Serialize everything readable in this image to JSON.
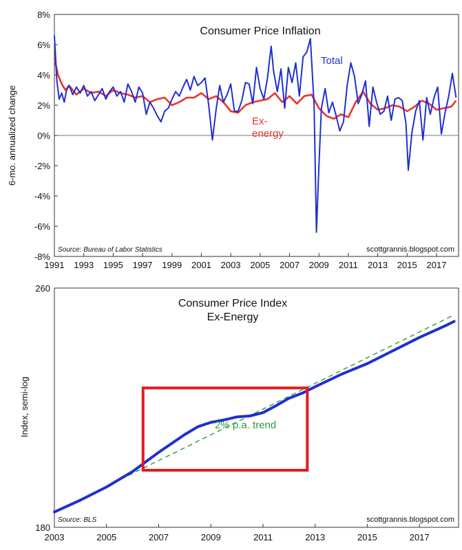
{
  "chart_data": [
    {
      "type": "line",
      "title": "Consumer Price Inflation",
      "ylabel": "6-mo. annualized change",
      "xlim": [
        1991,
        2018.5
      ],
      "ylim": [
        -8,
        8
      ],
      "x_ticks": [
        "1991",
        "1993",
        "1995",
        "1997",
        "1999",
        "2001",
        "2003",
        "2005",
        "2007",
        "2009",
        "2011",
        "2013",
        "2015",
        "2017"
      ],
      "x_tick_values": [
        1991,
        1993,
        1995,
        1997,
        1999,
        2001,
        2003,
        2005,
        2007,
        2009,
        2011,
        2013,
        2015,
        2017
      ],
      "y_ticks": [
        "8%",
        "6%",
        "4%",
        "2%",
        "0%",
        "-2%",
        "-4%",
        "-6%",
        "-8%"
      ],
      "y_tick_values": [
        8,
        6,
        4,
        2,
        0,
        -2,
        -4,
        -6,
        -8
      ],
      "source": "Source: Bureau of Labor Statistics",
      "website": "scottgrannis.blogspot.com",
      "series": [
        {
          "name": "Total",
          "color": "#1f2fd0",
          "x": [
            1991.0,
            1991.17,
            1991.33,
            1991.5,
            1991.67,
            1991.83,
            1992.0,
            1992.25,
            1992.5,
            1992.75,
            1993.0,
            1993.25,
            1993.5,
            1993.75,
            1994.0,
            1994.25,
            1994.5,
            1994.75,
            1995.0,
            1995.25,
            1995.5,
            1995.75,
            1996.0,
            1996.25,
            1996.5,
            1996.75,
            1997.0,
            1997.25,
            1997.5,
            1997.75,
            1998.0,
            1998.25,
            1998.5,
            1998.75,
            1999.0,
            1999.25,
            1999.5,
            1999.75,
            2000.0,
            2000.25,
            2000.5,
            2000.75,
            2001.0,
            2001.25,
            2001.5,
            2001.75,
            2002.0,
            2002.25,
            2002.5,
            2002.75,
            2003.0,
            2003.25,
            2003.5,
            2003.75,
            2004.0,
            2004.25,
            2004.5,
            2004.75,
            2005.0,
            2005.25,
            2005.5,
            2005.75,
            2005.92,
            2006.17,
            2006.42,
            2006.67,
            2006.92,
            2007.17,
            2007.42,
            2007.67,
            2007.92,
            2008.17,
            2008.42,
            2008.67,
            2008.83,
            2009.0,
            2009.17,
            2009.42,
            2009.67,
            2009.92,
            2010.17,
            2010.42,
            2010.67,
            2010.92,
            2011.17,
            2011.42,
            2011.67,
            2011.92,
            2012.17,
            2012.42,
            2012.67,
            2012.92,
            2013.17,
            2013.42,
            2013.67,
            2013.92,
            2014.17,
            2014.42,
            2014.67,
            2014.92,
            2015.08,
            2015.33,
            2015.58,
            2015.83,
            2016.08,
            2016.33,
            2016.58,
            2016.83,
            2017.08,
            2017.33,
            2017.58,
            2017.83,
            2018.08,
            2018.33
          ],
          "y": [
            6.6,
            3.6,
            2.4,
            2.8,
            2.2,
            3.0,
            3.3,
            2.7,
            3.2,
            2.8,
            3.3,
            2.6,
            2.9,
            2.3,
            2.7,
            3.1,
            2.4,
            2.9,
            3.2,
            2.6,
            2.9,
            2.2,
            3.4,
            2.9,
            2.2,
            3.2,
            2.8,
            1.4,
            2.2,
            1.8,
            1.3,
            0.9,
            1.6,
            1.8,
            2.4,
            2.9,
            2.6,
            3.2,
            3.7,
            3.0,
            3.9,
            3.3,
            3.5,
            3.8,
            2.0,
            -0.3,
            1.7,
            3.3,
            2.2,
            2.7,
            3.4,
            1.6,
            1.6,
            2.3,
            3.5,
            3.4,
            2.1,
            4.5,
            3.1,
            2.4,
            3.8,
            5.9,
            4.2,
            2.9,
            4.4,
            1.8,
            4.5,
            3.5,
            4.8,
            2.6,
            5.2,
            5.5,
            6.4,
            2.0,
            -6.4,
            -2.0,
            1.8,
            3.1,
            1.5,
            2.2,
            1.3,
            0.3,
            0.9,
            3.3,
            4.8,
            3.9,
            2.1,
            2.7,
            3.6,
            0.6,
            3.2,
            2.2,
            1.4,
            1.6,
            2.6,
            1.0,
            2.4,
            2.5,
            2.3,
            0.8,
            -2.3,
            0.2,
            1.6,
            2.3,
            -0.3,
            2.5,
            1.4,
            2.5,
            3.2,
            0.1,
            1.5,
            2.6,
            4.1,
            2.5
          ]
        },
        {
          "name": "Ex-energy",
          "color": "#e8342a",
          "x": [
            1991.0,
            1991.25,
            1991.5,
            1991.75,
            1992.0,
            1992.5,
            1993.0,
            1993.5,
            1994.0,
            1994.5,
            1995.0,
            1995.5,
            1996.0,
            1996.5,
            1997.0,
            1997.5,
            1998.0,
            1998.5,
            1999.0,
            1999.5,
            2000.0,
            2000.5,
            2001.0,
            2001.5,
            2002.0,
            2002.5,
            2003.0,
            2003.5,
            2004.0,
            2004.5,
            2005.0,
            2005.5,
            2006.0,
            2006.5,
            2007.0,
            2007.5,
            2008.0,
            2008.5,
            2009.0,
            2009.5,
            2010.0,
            2010.5,
            2011.0,
            2011.5,
            2012.0,
            2012.5,
            2013.0,
            2013.5,
            2014.0,
            2014.5,
            2015.0,
            2015.5,
            2016.0,
            2016.5,
            2017.0,
            2017.5,
            2018.0,
            2018.33
          ],
          "y": [
            5.1,
            4.0,
            3.4,
            3.0,
            3.3,
            2.7,
            3.1,
            2.8,
            2.9,
            2.6,
            3.0,
            2.8,
            2.7,
            2.5,
            2.6,
            2.2,
            2.4,
            2.5,
            2.0,
            2.2,
            2.5,
            2.5,
            2.8,
            2.4,
            2.6,
            2.2,
            1.6,
            1.5,
            2.0,
            2.2,
            2.3,
            2.4,
            2.8,
            2.2,
            2.6,
            2.1,
            2.6,
            2.7,
            1.8,
            1.3,
            1.1,
            1.4,
            1.2,
            2.2,
            2.9,
            2.1,
            1.7,
            1.8,
            2.0,
            1.9,
            1.6,
            1.9,
            2.3,
            2.1,
            1.7,
            1.8,
            1.9,
            2.3
          ]
        }
      ],
      "annotations": [
        "Total",
        "Ex-",
        "energy"
      ]
    },
    {
      "type": "line",
      "title": "Consumer Price Index",
      "subtitle": "Ex-Energy",
      "ylabel": "Index, semi-log",
      "scale": "log",
      "xlim": [
        2003,
        2018.5
      ],
      "ylim": [
        180,
        260
      ],
      "x_ticks": [
        "2003",
        "2005",
        "2007",
        "2009",
        "2011",
        "2013",
        "2015",
        "2017"
      ],
      "x_tick_values": [
        2003,
        2005,
        2007,
        2009,
        2011,
        2013,
        2015,
        2017
      ],
      "y_ticks": [
        "260",
        "180"
      ],
      "y_tick_values": [
        260,
        180
      ],
      "source": "Source: BLS",
      "website": "scottgrannis.blogspot.com",
      "series": [
        {
          "name": "Ex-Energy",
          "color": "#1f2fd0",
          "x": [
            2003.0,
            2004.0,
            2005.0,
            2006.0,
            2007.0,
            2008.0,
            2008.5,
            2009.0,
            2009.5,
            2010.0,
            2010.5,
            2011.0,
            2011.5,
            2012.0,
            2012.5,
            2013.0,
            2014.0,
            2015.0,
            2016.0,
            2017.0,
            2018.0,
            2018.33
          ],
          "y": [
            184.3,
            187.7,
            191.5,
            196.1,
            202.0,
            207.6,
            210.1,
            211.5,
            212.3,
            213.3,
            213.6,
            214.7,
            217.0,
            219.5,
            221.2,
            223.4,
            227.7,
            231.5,
            236.2,
            241.0,
            245.4,
            247.0
          ]
        },
        {
          "name": "2% p.a. trend",
          "color": "#2f9a3a",
          "dashed": true,
          "x": [
            2003.0,
            2018.33
          ],
          "y": [
            184.3,
            249.5
          ]
        }
      ],
      "annotations": [
        "2% p.a. trend"
      ],
      "highlight_box": {
        "x0": 2006.4,
        "x1": 2012.7,
        "y0": 196.5,
        "y1": 223.0,
        "color": "#e8181e"
      }
    }
  ]
}
